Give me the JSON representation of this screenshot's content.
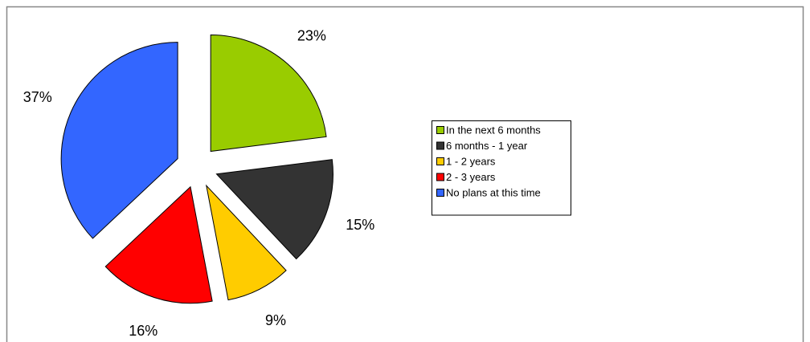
{
  "chart_data": {
    "type": "pie",
    "categories": [
      "In the next 6 months",
      "6 months - 1 year",
      "1 - 2 years",
      "2 - 3 years",
      "No plans at this time"
    ],
    "values": [
      23,
      15,
      9,
      16,
      37
    ],
    "value_labels": [
      "23%",
      "15%",
      "9%",
      "16%",
      "37%"
    ],
    "colors": [
      "#99cc00",
      "#333333",
      "#ffcc00",
      "#ff0000",
      "#3366ff"
    ],
    "legend": "right"
  }
}
